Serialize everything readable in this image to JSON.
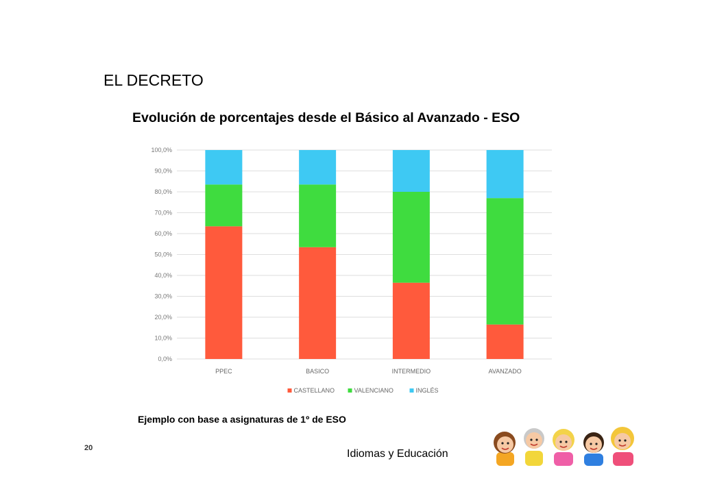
{
  "slide": {
    "heading": "EL DECRETO",
    "note": "Ejemplo con base a asignaturas de 1º de ESO",
    "page_number": "20",
    "footer_label": "Idiomas y Educación"
  },
  "colors": {
    "castellano": "#ff5a3c",
    "valenciano": "#3fdc3f",
    "ingles": "#3ec9f3"
  },
  "chart_data": {
    "type": "bar",
    "stacked": true,
    "title": "Evolución de porcentajes desde el Básico al Avanzado - ESO",
    "categories": [
      "PPEC",
      "BASICO",
      "INTERMEDIO",
      "AVANZADO"
    ],
    "series": [
      {
        "name": "CASTELLANO",
        "color": "#ff5a3c",
        "values": [
          63.5,
          53.5,
          36.5,
          16.5
        ]
      },
      {
        "name": "VALENCIANO",
        "color": "#3fdc3f",
        "values": [
          20.0,
          30.0,
          43.5,
          60.5
        ]
      },
      {
        "name": "INGLÉS",
        "color": "#3ec9f3",
        "values": [
          16.5,
          16.5,
          20.0,
          23.0
        ]
      }
    ],
    "y_ticks": [
      "0,0%",
      "10,0%",
      "20,0%",
      "30,0%",
      "40,0%",
      "50,0%",
      "60,0%",
      "70,0%",
      "80,0%",
      "90,0%",
      "100,0%"
    ],
    "ylim": [
      0,
      100
    ],
    "grid": true,
    "legend_position": "bottom"
  }
}
